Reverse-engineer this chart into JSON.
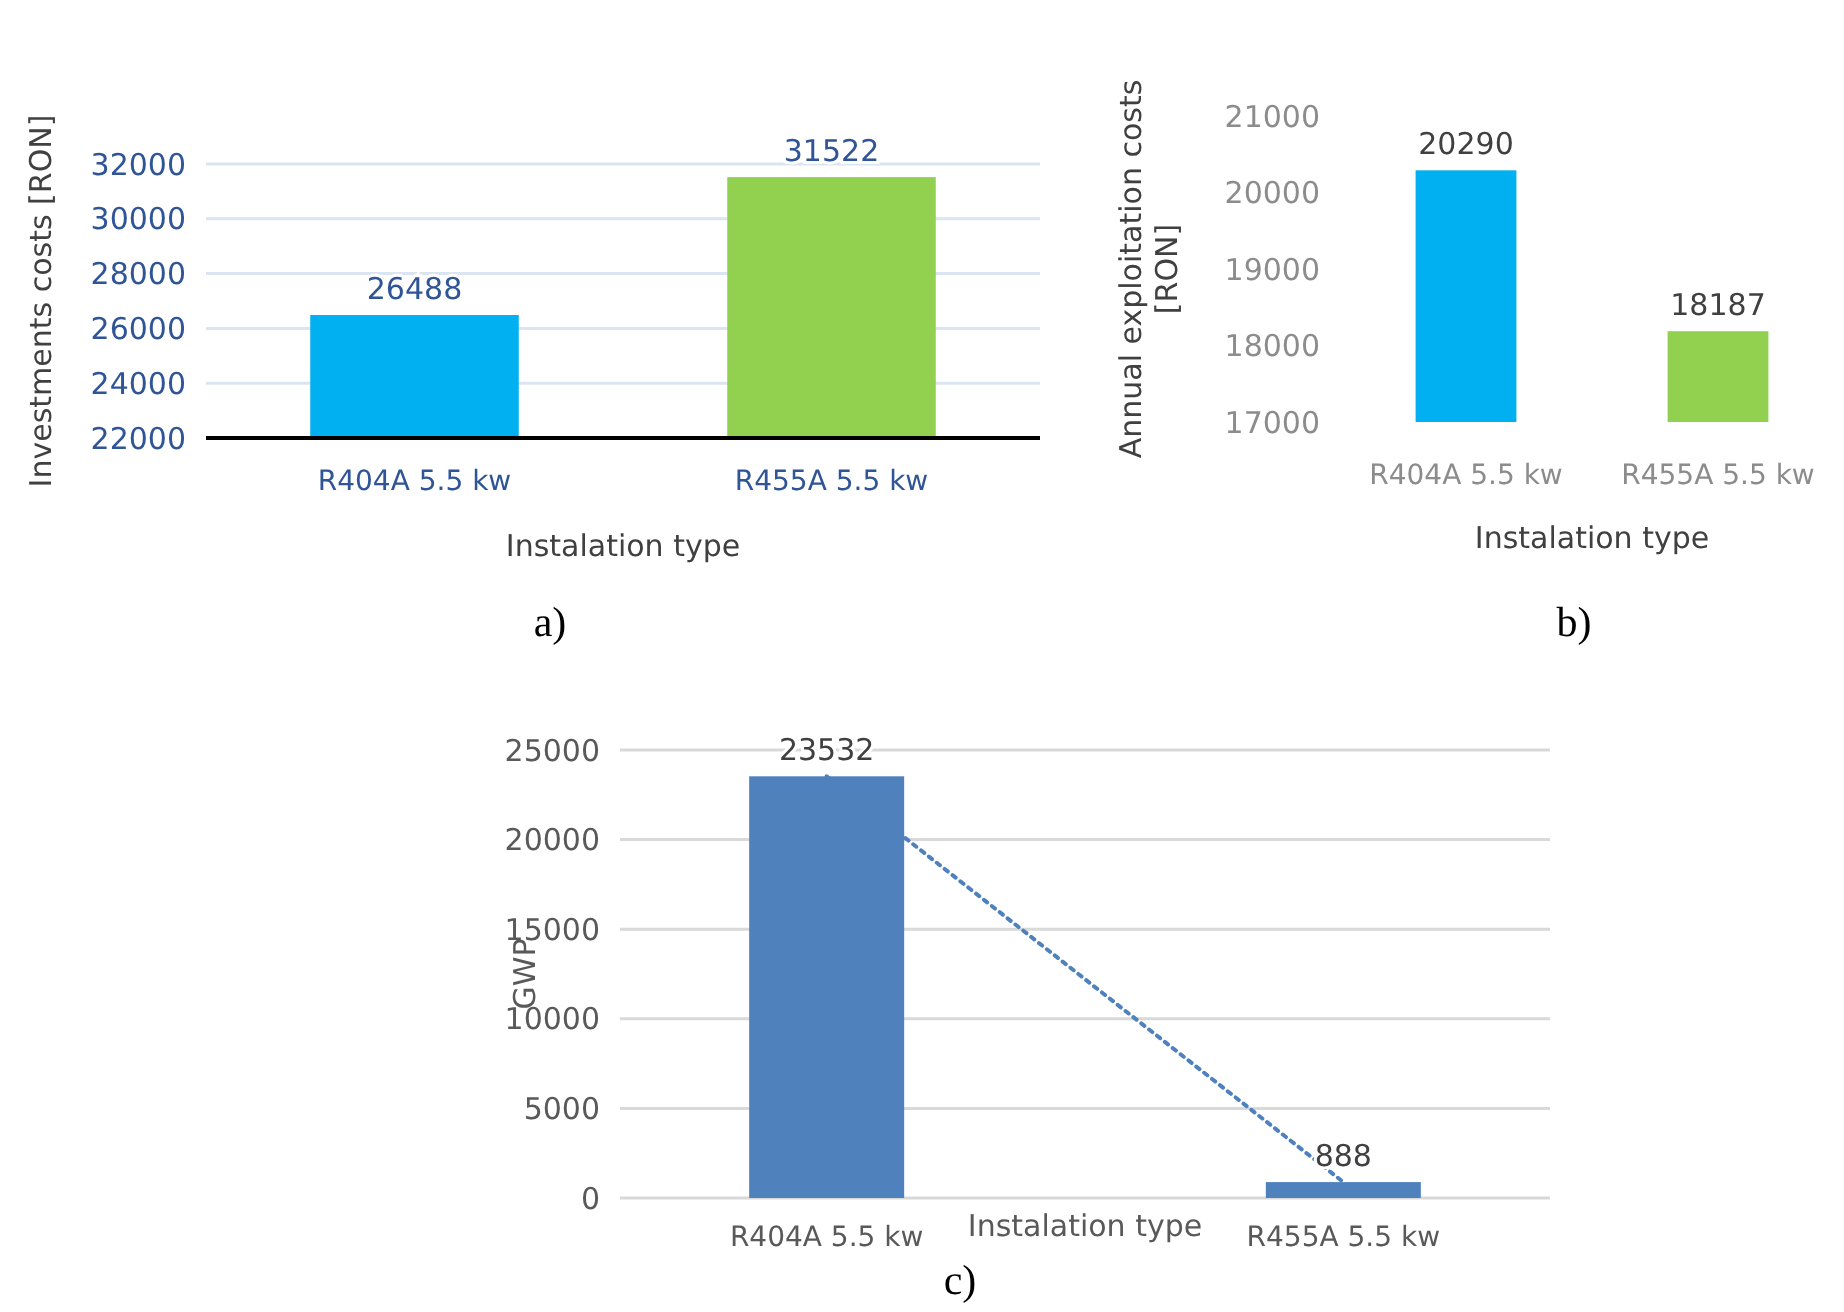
{
  "chart_data": [
    {
      "type": "bar",
      "ylabel": "Investments costs [RON]",
      "xlabel": "Instalation type",
      "categories": [
        "R404A 5.5 kw",
        "R455A 5.5 kw"
      ],
      "values": [
        26488,
        31522
      ],
      "colors": [
        "#00b0f0",
        "#92d050"
      ],
      "ylim": [
        22000,
        32000
      ],
      "yticks": [
        22000,
        24000,
        26000,
        28000,
        30000,
        32000
      ],
      "grid": "y",
      "data_labels": true,
      "annotations": [
        "a)"
      ]
    },
    {
      "type": "bar",
      "ylabel": "Annual exploitation costs [RON]",
      "xlabel": "Instalation type",
      "categories": [
        "R404A 5.5 kw",
        "R455A 5.5 kw"
      ],
      "values": [
        20290,
        18187
      ],
      "colors": [
        "#00b0f0",
        "#92d050"
      ],
      "ylim": [
        17000,
        21000
      ],
      "yticks": [
        17000,
        18000,
        19000,
        20000,
        21000
      ],
      "data_labels": true,
      "annotations": [
        "b)"
      ]
    },
    {
      "type": "bar",
      "ylabel": "GWP",
      "xlabel": "Instalation type",
      "categories": [
        "R404A 5.5 kw",
        "R455A 5.5 kw"
      ],
      "series": [
        {
          "color": "#4f81bd",
          "values": [
            23532,
            888
          ],
          "value_labels": [
            "23532",
            "888"
          ]
        },
        {
          "type": "line",
          "color": "#4f81bd",
          "line_style": "dotted",
          "x": [
            "R404A 5.5 kw",
            "R455A 5.5 kw"
          ],
          "values": [
            23532,
            888
          ]
        }
      ],
      "ylim": [
        0,
        25000
      ],
      "yticks": [
        0,
        5000,
        10000,
        15000,
        20000,
        25000
      ],
      "grid": "y",
      "annotations": [
        "c)"
      ]
    }
  ]
}
